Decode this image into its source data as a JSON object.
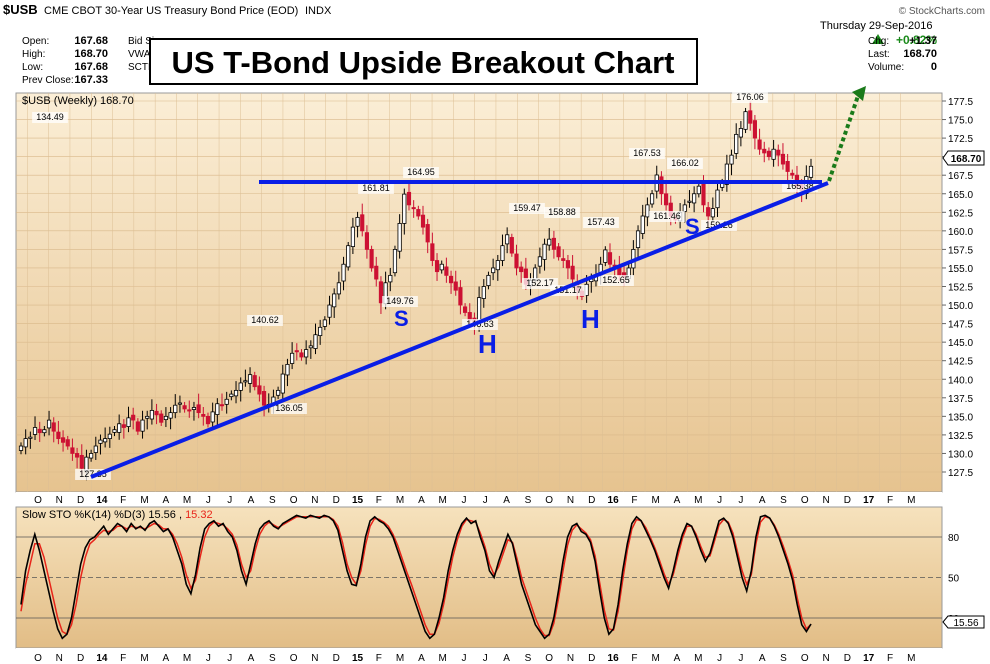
{
  "header": {
    "symbol": "$USB",
    "description": "CME CBOT 30-Year US Treasury Bond Price (EOD)",
    "exchange": "INDX",
    "date": "Thursday  29-Sep-2016",
    "change_pct": "+0.82%",
    "copyright": "© StockCharts.com",
    "stats_left": [
      {
        "label": "Open:",
        "value": "167.68"
      },
      {
        "label": "High:",
        "value": "168.70"
      },
      {
        "label": "Low:",
        "value": "167.68"
      },
      {
        "label": "Prev Close:",
        "value": "167.33"
      }
    ],
    "stats_mid": [
      {
        "label": "Bid Size:",
        "value": ""
      },
      {
        "label": "VWAP:",
        "value": ""
      },
      {
        "label": "SCTR:",
        "value": ""
      }
    ],
    "stats_right": [
      {
        "label": "Chg:",
        "value": "+1.37"
      },
      {
        "label": "Last:",
        "value": "168.70"
      },
      {
        "label": "Volume:",
        "value": "0"
      }
    ]
  },
  "title_banner": "US T-Bond Upside Breakout Chart",
  "price_panel": {
    "legend": "$USB (Weekly) 168.70",
    "last_price_flag": "168.70"
  },
  "stoch_panel": {
    "legend_prefix": "Slow STO %K(14) %D(3)",
    "k_value": "15.56",
    "d_value": "15.32",
    "last_flag": "15.56"
  },
  "x_axis_labels": [
    "O",
    "N",
    "D",
    "14",
    "F",
    "M",
    "A",
    "M",
    "J",
    "J",
    "A",
    "S",
    "O",
    "N",
    "D",
    "15",
    "F",
    "M",
    "A",
    "M",
    "J",
    "J",
    "A",
    "S",
    "O",
    "N",
    "D",
    "16",
    "F",
    "M",
    "A",
    "M",
    "J",
    "J",
    "A",
    "S",
    "O",
    "N",
    "D",
    "17",
    "F",
    "M"
  ],
  "price_y_ticks": [
    "177.5",
    "175.0",
    "172.5",
    "170.0",
    "167.5",
    "165.0",
    "162.5",
    "160.0",
    "157.5",
    "155.0",
    "152.5",
    "150.0",
    "147.5",
    "145.0",
    "142.5",
    "140.0",
    "137.5",
    "135.0",
    "132.5",
    "130.0",
    "127.5"
  ],
  "stoch_y_ticks": [
    "80",
    "50",
    "20"
  ],
  "pattern_labels": {
    "left_shoulder": "S",
    "head": "H",
    "right_shoulder": "S",
    "second_head": "H"
  },
  "price_annotations": [
    "134.49",
    "127.35",
    "140.62",
    "136.05",
    "161.81",
    "149.76",
    "164.95",
    "146.63",
    "159.47",
    "152.17",
    "158.88",
    "157.43",
    "151.17",
    "152.65",
    "167.53",
    "161.46",
    "166.02",
    "176.06",
    "165.38",
    "159.26"
  ],
  "colors": {
    "panel_bg": "#f2d7aa",
    "up_candle": "#ffffff",
    "down_candle": "#cc1133",
    "trendline": "#0a1ee6",
    "breakout_arrow": "#1a7a1a",
    "k_line": "#000000",
    "d_line": "#e8251a",
    "change_positive": "#1a8a1a"
  },
  "chart_data": {
    "type": "candlestick",
    "title": "US T-Bond Upside Breakout Chart",
    "symbol": "$USB",
    "period": "Weekly",
    "ylim": [
      126,
      178.5
    ],
    "x_range": [
      "2013-10",
      "2017-03"
    ],
    "closes": [
      131,
      132,
      132.2,
      133.5,
      132.8,
      133.2,
      134.49,
      133,
      132,
      131.5,
      131,
      130,
      129.5,
      128,
      129.5,
      130,
      131,
      131.8,
      132,
      132.6,
      133.2,
      134,
      133.5,
      134.8,
      134.5,
      133,
      134.5,
      135,
      135.8,
      135.2,
      134.2,
      135,
      135.5,
      136.5,
      136.8,
      136,
      135.8,
      136.2,
      135.5,
      135,
      134,
      135.6,
      136.7,
      136.5,
      137.3,
      138,
      138.5,
      139.5,
      139.8,
      140.62,
      139,
      138,
      136.5,
      136.6,
      137.6,
      138.5,
      140.7,
      142,
      143.5,
      143.8,
      143,
      144,
      144.5,
      146,
      147,
      148,
      150,
      151.5,
      153,
      155.5,
      158,
      160.5,
      161.81,
      160,
      157.5,
      155,
      153.5,
      150.3,
      153,
      154,
      157.5,
      161,
      164.95,
      163.5,
      163,
      162,
      160.5,
      158.5,
      156,
      154.5,
      155.5,
      154,
      153,
      152,
      150,
      149,
      148,
      147.5,
      151,
      152.5,
      154,
      155,
      156,
      158,
      159.47,
      157,
      155,
      154.5,
      152.8,
      153.3,
      155,
      156.5,
      158.2,
      158.88,
      157.5,
      156.5,
      156,
      155,
      153.5,
      152,
      151.17,
      152.8,
      153.5,
      154,
      155.5,
      157.43,
      155.5,
      155,
      154,
      153.8,
      155,
      157.5,
      160,
      162,
      163.5,
      165,
      167.53,
      165,
      163.5,
      162,
      161.46,
      162.5,
      163.5,
      164,
      165,
      166.02,
      163.5,
      162,
      163,
      165.5,
      166.5,
      169,
      170.2,
      173,
      173.8,
      176.06,
      174.5,
      172.5,
      171,
      170.5,
      170,
      171,
      170.2,
      169,
      168,
      167.5,
      166,
      165.38,
      167.33,
      168.7
    ],
    "annotations": [
      {
        "label": "134.49",
        "date": "2013-12"
      },
      {
        "label": "127.35",
        "date": "2014-01"
      },
      {
        "label": "140.62",
        "date": "2014-08"
      },
      {
        "label": "136.05",
        "date": "2014-09"
      },
      {
        "label": "161.81",
        "date": "2015-01"
      },
      {
        "label": "149.76",
        "date": "2015-03"
      },
      {
        "label": "164.95",
        "date": "2015-04"
      },
      {
        "label": "146.63",
        "date": "2015-06"
      },
      {
        "label": "159.47",
        "date": "2015-08"
      },
      {
        "label": "152.17",
        "date": "2015-09"
      },
      {
        "label": "158.88",
        "date": "2015-10"
      },
      {
        "label": "157.43",
        "date": "2015-12"
      },
      {
        "label": "151.17",
        "date": "2015-11"
      },
      {
        "label": "152.65",
        "date": "2015-12"
      },
      {
        "label": "167.53",
        "date": "2016-02"
      },
      {
        "label": "161.46",
        "date": "2016-03"
      },
      {
        "label": "166.02",
        "date": "2016-04"
      },
      {
        "label": "159.26",
        "date": "2016-05"
      },
      {
        "label": "176.06",
        "date": "2016-07"
      },
      {
        "label": "165.38",
        "date": "2016-09"
      }
    ],
    "horizontal_resistance": 165,
    "rising_trendline": {
      "from": {
        "date": "2014-01",
        "value": 127.35
      },
      "to": {
        "date": "2016-10",
        "value": 165
      }
    },
    "stochastic": {
      "k_period": 14,
      "d_period": 3,
      "last_k": 15.56,
      "last_d": 15.32,
      "ylim": [
        0,
        100
      ],
      "k": [
        30,
        55,
        70,
        82,
        70,
        55,
        40,
        25,
        12,
        5,
        8,
        20,
        40,
        60,
        72,
        78,
        80,
        84,
        88,
        82,
        86,
        90,
        88,
        84,
        90,
        86,
        88,
        85,
        90,
        92,
        88,
        84,
        86,
        80,
        70,
        60,
        45,
        38,
        52,
        72,
        86,
        90,
        92,
        88,
        90,
        84,
        80,
        70,
        55,
        45,
        60,
        75,
        86,
        90,
        92,
        88,
        86,
        90,
        92,
        94,
        96,
        95,
        94,
        96,
        95,
        94,
        96,
        95,
        92,
        85,
        70,
        55,
        45,
        44,
        60,
        80,
        92,
        95,
        92,
        90,
        86,
        80,
        70,
        60,
        50,
        40,
        30,
        20,
        10,
        5,
        8,
        20,
        35,
        55,
        70,
        82,
        90,
        94,
        90,
        92,
        80,
        70,
        55,
        50,
        62,
        72,
        82,
        75,
        60,
        45,
        35,
        25,
        15,
        10,
        5,
        8,
        20,
        40,
        62,
        80,
        88,
        90,
        84,
        82,
        76,
        62,
        40,
        20,
        8,
        12,
        30,
        55,
        75,
        90,
        95,
        92,
        85,
        78,
        70,
        60,
        50,
        42,
        55,
        70,
        82,
        90,
        88,
        80,
        70,
        62,
        68,
        80,
        92,
        94,
        90,
        80,
        65,
        50,
        40,
        55,
        80,
        95,
        96,
        94,
        88,
        80,
        70,
        60,
        48,
        30,
        15,
        10,
        15.56
      ],
      "d": [
        25,
        45,
        60,
        75,
        75,
        65,
        50,
        35,
        20,
        10,
        8,
        15,
        30,
        50,
        65,
        75,
        78,
        82,
        85,
        84,
        85,
        88,
        88,
        86,
        88,
        87,
        87,
        86,
        88,
        90,
        89,
        86,
        86,
        82,
        75,
        65,
        52,
        42,
        48,
        65,
        80,
        88,
        91,
        90,
        89,
        86,
        82,
        74,
        60,
        50,
        55,
        70,
        82,
        88,
        91,
        89,
        87,
        89,
        91,
        93,
        95,
        95,
        95,
        95,
        95,
        95,
        95,
        95,
        93,
        88,
        76,
        60,
        50,
        45,
        55,
        74,
        88,
        94,
        93,
        91,
        88,
        82,
        74,
        64,
        54,
        45,
        35,
        25,
        15,
        8,
        8,
        16,
        30,
        48,
        65,
        78,
        88,
        93,
        92,
        91,
        83,
        73,
        60,
        52,
        58,
        68,
        78,
        76,
        64,
        50,
        40,
        30,
        20,
        12,
        7,
        7,
        16,
        34,
        55,
        74,
        85,
        89,
        86,
        83,
        78,
        66,
        46,
        26,
        12,
        11,
        25,
        48,
        70,
        86,
        93,
        92,
        87,
        80,
        72,
        63,
        53,
        45,
        52,
        66,
        79,
        88,
        88,
        82,
        73,
        65,
        66,
        77,
        89,
        93,
        91,
        83,
        69,
        55,
        45,
        52,
        75,
        91,
        95,
        94,
        89,
        82,
        73,
        63,
        52,
        35,
        20,
        12,
        15.32
      ]
    }
  }
}
